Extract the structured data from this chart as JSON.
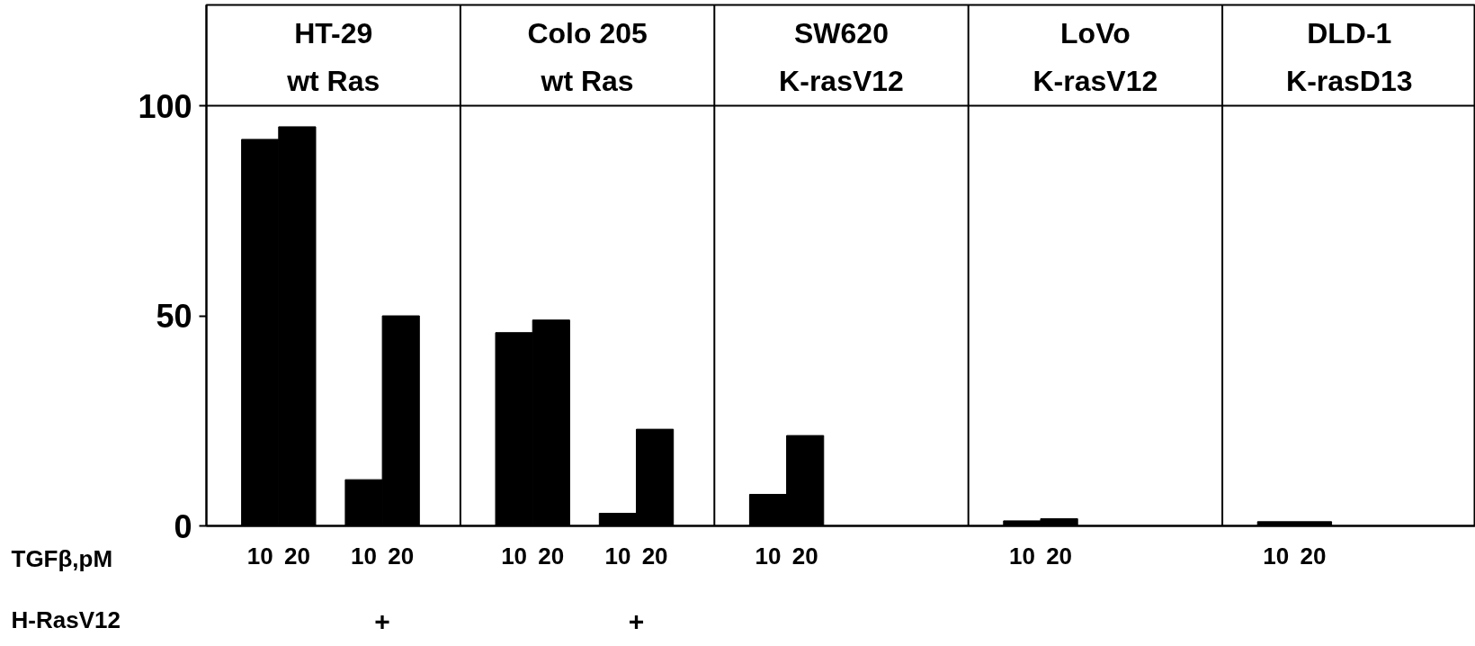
{
  "chart_data": {
    "type": "bar",
    "categories": [
      "10",
      "20",
      "10",
      "20",
      "10",
      "20",
      "10",
      "20",
      "10",
      "20",
      null,
      null,
      "10",
      "20",
      null,
      null,
      "10",
      "20",
      null,
      null
    ],
    "values": [
      92,
      95,
      11,
      50,
      46,
      49,
      3,
      23,
      7.5,
      21.5,
      null,
      null,
      1.2,
      1.7,
      null,
      null,
      1,
      1,
      null,
      null
    ],
    "color": "#000000",
    "ylim": [
      0,
      124
    ],
    "yticks": [
      0,
      50,
      100
    ],
    "grid": false,
    "legend": false,
    "xlabel": "TGFβ,pM",
    "ref_lines": [
      {
        "axis": "y",
        "value": 100
      }
    ],
    "annotations": [
      "HT-29\nwt Ras",
      "Colo 205\nwt Ras",
      "SW620\nK-rasV12",
      "LoVo\nK-rasV12",
      "DLD-1\nK-rasD13",
      "H-RasV12",
      "+",
      "+"
    ]
  }
}
